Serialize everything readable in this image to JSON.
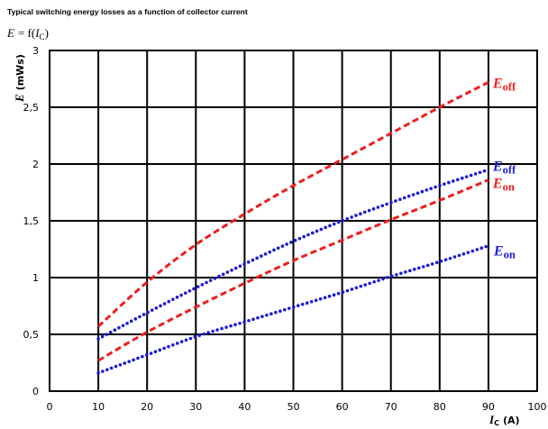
{
  "chart_data": {
    "type": "line",
    "title": "Typical switching energy losses as a function of collector current",
    "subtitle": {
      "symbol": "E",
      "operator": "= f(",
      "variable": "I",
      "subscript": "C",
      "close": ")"
    },
    "xlabel": {
      "symbol": "I",
      "subscript": "C",
      "unit": "(A)"
    },
    "ylabel": {
      "symbol": "E",
      "unit": "(mWs)"
    },
    "xlim": [
      0,
      100
    ],
    "ylim": [
      0,
      3
    ],
    "xticks": [
      0,
      10,
      20,
      30,
      40,
      50,
      60,
      70,
      80,
      90,
      100
    ],
    "xtick_labels": [
      "0",
      "10",
      "20",
      "30",
      "40",
      "50",
      "60",
      "70",
      "80",
      "90",
      "100"
    ],
    "yticks": [
      0,
      0.5,
      1,
      1.5,
      2,
      2.5,
      3
    ],
    "ytick_labels": [
      "0",
      "0,5",
      "1",
      "1,5",
      "2",
      "2,5",
      "3"
    ],
    "grid": true,
    "series": [
      {
        "label": {
          "symbol": "E",
          "subscript": "off"
        },
        "color": "#f01c1c",
        "line_style": "dashed",
        "x": [
          10,
          20,
          30,
          40,
          50,
          60,
          70,
          80,
          90
        ],
        "y": [
          0.57,
          0.96,
          1.29,
          1.56,
          1.81,
          2.04,
          2.27,
          2.5,
          2.72
        ]
      },
      {
        "label": {
          "symbol": "E",
          "subscript": "off"
        },
        "color": "#1a1ad8",
        "line_style": "dotted",
        "x": [
          10,
          20,
          30,
          40,
          50,
          60,
          70,
          80,
          90
        ],
        "y": [
          0.46,
          0.69,
          0.91,
          1.12,
          1.32,
          1.5,
          1.66,
          1.81,
          1.95
        ]
      },
      {
        "label": {
          "symbol": "E",
          "subscript": "on"
        },
        "color": "#f01c1c",
        "line_style": "dashed",
        "x": [
          10,
          20,
          30,
          40,
          50,
          60,
          70,
          80,
          90
        ],
        "y": [
          0.27,
          0.52,
          0.74,
          0.95,
          1.15,
          1.33,
          1.51,
          1.68,
          1.86
        ]
      },
      {
        "label": {
          "symbol": "E",
          "subscript": "on"
        },
        "color": "#1a1ad8",
        "line_style": "dotted",
        "x": [
          10,
          20,
          30,
          40,
          50,
          60,
          70,
          80,
          90
        ],
        "y": [
          0.16,
          0.32,
          0.48,
          0.61,
          0.74,
          0.87,
          1.01,
          1.14,
          1.28
        ]
      }
    ]
  }
}
